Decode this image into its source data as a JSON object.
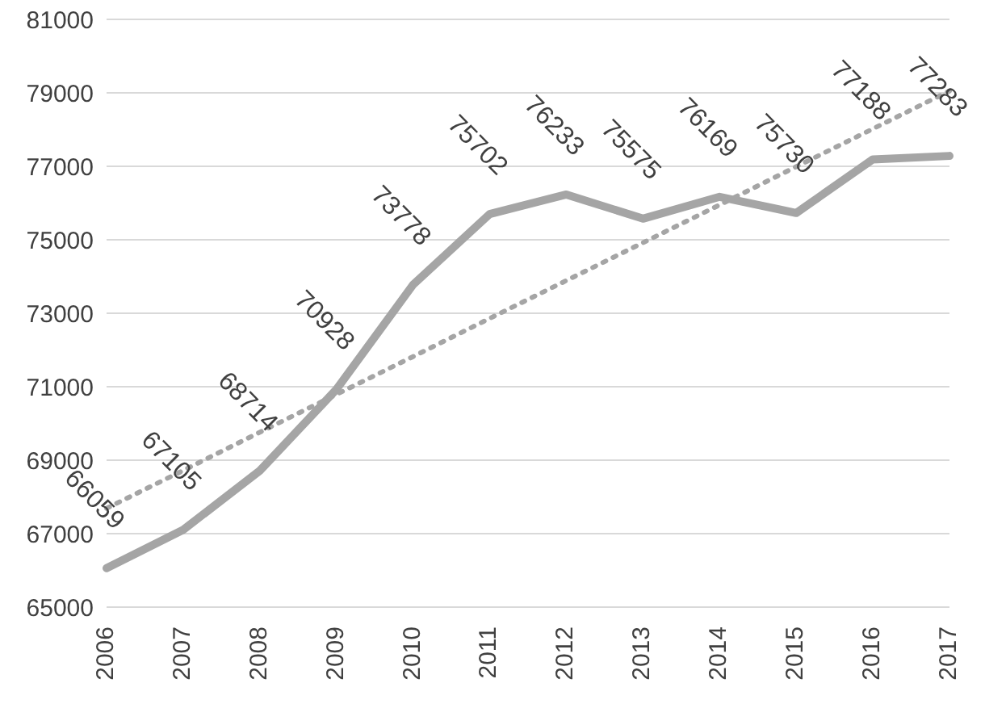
{
  "chart_data": {
    "type": "line",
    "categories": [
      "2006",
      "2007",
      "2008",
      "2009",
      "2010",
      "2011",
      "2012",
      "2013",
      "2014",
      "2015",
      "2016",
      "2017"
    ],
    "series": [
      {
        "color": "#a5a5a5",
        "values": [
          66059,
          67105,
          68714,
          70928,
          73778,
          75702,
          76233,
          75575,
          76169,
          75730,
          77188,
          77283
        ],
        "value_labels": [
          "66059",
          "67105",
          "68714",
          "70928",
          "73778",
          "75702",
          "76233",
          "75575",
          "76169",
          "75730",
          "77188",
          "77283"
        ],
        "marker": "none",
        "line_style": "solid"
      },
      {
        "type": "line",
        "color": "#a5a5a5",
        "values": [
          67690,
          68720,
          69760,
          70790,
          71820,
          72860,
          73890,
          74920,
          75950,
          76990,
          78020,
          79050
        ],
        "marker": "none",
        "line_style": "dotted"
      }
    ],
    "ylim": [
      65000,
      81000
    ],
    "yticks": [
      65000,
      67000,
      69000,
      71000,
      73000,
      75000,
      77000,
      79000,
      81000
    ],
    "grid": "y",
    "legend": false
  }
}
